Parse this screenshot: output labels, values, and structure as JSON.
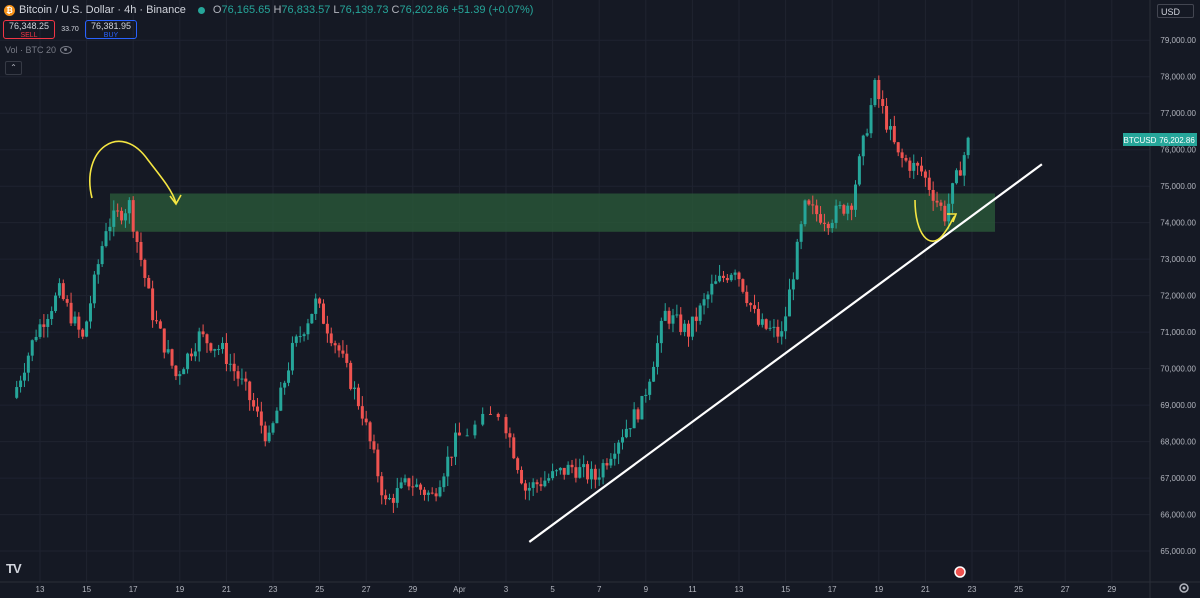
{
  "header": {
    "title": "Bitcoin / U.S. Dollar · 4h · Binance",
    "ohlc": [
      {
        "k": "O",
        "v": "76,165.65"
      },
      {
        "k": "H",
        "v": "76,833.57"
      },
      {
        "k": "L",
        "v": "76,139.73"
      },
      {
        "k": "C",
        "v": "76,202.86"
      }
    ],
    "change": "+51.39 (+0.07%)"
  },
  "trade": {
    "sell_price": "76,348.25",
    "sell_label": "SELL",
    "spread": "33.70",
    "buy_price": "76,381.95",
    "buy_label": "BUY"
  },
  "indicator": {
    "label": "Vol · BTC 20"
  },
  "currency": "USD",
  "colors": {
    "up": "#26a69a",
    "down": "#ef5350",
    "zone": "#2b5c3a",
    "trendline": "#ffffff",
    "annotation": "#f5e642",
    "background": "#151924"
  },
  "chart_data": {
    "type": "candlestick",
    "symbol_label": "BTCUSD",
    "last_price": "76,202.86",
    "ylim": [
      64700,
      79500
    ],
    "y_ticks": [
      "79,000.00",
      "78,000.00",
      "77,000.00",
      "76,000.00",
      "75,000.00",
      "74,000.00",
      "73,000.00",
      "72,000.00",
      "71,000.00",
      "70,000.00",
      "69,000.00",
      "68,000.00",
      "67,000.00",
      "66,000.00",
      "65,000.00"
    ],
    "x_ticks": [
      "13",
      "15",
      "17",
      "19",
      "21",
      "23",
      "25",
      "27",
      "29",
      "Apr",
      "3",
      "5",
      "7",
      "9",
      "11",
      "13",
      "15",
      "17",
      "19",
      "21",
      "23",
      "25",
      "27",
      "29"
    ],
    "zone": {
      "from": 73750,
      "to": 74800
    },
    "trendline": {
      "start": [
        "Apr 2",
        65250
      ],
      "end": [
        "Apr 24",
        75600
      ]
    },
    "key_points": [
      {
        "x": "Mar 12",
        "y": 69200
      },
      {
        "x": "Mar 13",
        "y": 71000
      },
      {
        "x": "Mar 14",
        "y": 72100
      },
      {
        "x": "Mar 15",
        "y": 70800
      },
      {
        "x": "Mar 16",
        "y": 73900
      },
      {
        "x": "Mar 17",
        "y": 74500
      },
      {
        "x": "Mar 18",
        "y": 71500
      },
      {
        "x": "Mar 19",
        "y": 69800
      },
      {
        "x": "Mar 20",
        "y": 70900
      },
      {
        "x": "Mar 21",
        "y": 70500
      },
      {
        "x": "Mar 22",
        "y": 69400
      },
      {
        "x": "Mar 23",
        "y": 68000
      },
      {
        "x": "Mar 24",
        "y": 70500
      },
      {
        "x": "Mar 25",
        "y": 71800
      },
      {
        "x": "Mar 26",
        "y": 70500
      },
      {
        "x": "Mar 27",
        "y": 68800
      },
      {
        "x": "Mar 28",
        "y": 66300
      },
      {
        "x": "Mar 29",
        "y": 66900
      },
      {
        "x": "Mar 30",
        "y": 66500
      },
      {
        "x": "Mar 31",
        "y": 68000
      },
      {
        "x": "Apr 1",
        "y": 68800
      },
      {
        "x": "Apr 2",
        "y": 66700
      },
      {
        "x": "Apr 3",
        "y": 67000
      },
      {
        "x": "Apr 4",
        "y": 67300
      },
      {
        "x": "Apr 5",
        "y": 67000
      },
      {
        "x": "Apr 6",
        "y": 68100
      },
      {
        "x": "Apr 7",
        "y": 69000
      },
      {
        "x": "Apr 8",
        "y": 71500
      },
      {
        "x": "Apr 9",
        "y": 71000
      },
      {
        "x": "Apr 10",
        "y": 72200
      },
      {
        "x": "Apr 11",
        "y": 72800
      },
      {
        "x": "Apr 12",
        "y": 71200
      },
      {
        "x": "Apr 13",
        "y": 70900
      },
      {
        "x": "Apr 14",
        "y": 74400
      },
      {
        "x": "Apr 15",
        "y": 74100
      },
      {
        "x": "Apr 16",
        "y": 74600
      },
      {
        "x": "Apr 17",
        "y": 77700
      },
      {
        "x": "Apr 18",
        "y": 75800
      },
      {
        "x": "Apr 19",
        "y": 75400
      },
      {
        "x": "Apr 20",
        "y": 74200
      },
      {
        "x": "Apr 21",
        "y": 76200
      }
    ]
  }
}
